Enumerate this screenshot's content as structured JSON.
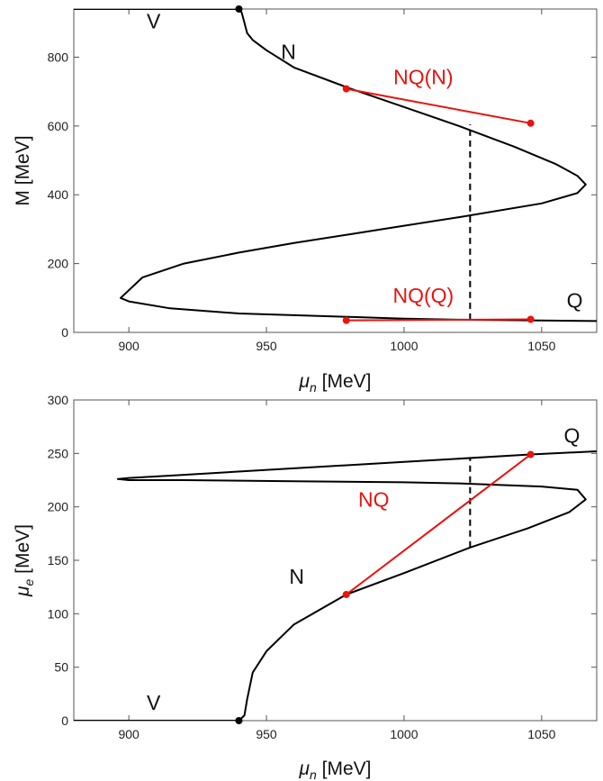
{
  "chart_data": [
    {
      "type": "line",
      "xlabel_sym": "μ",
      "xlabel_sub": "n",
      "xlabel_unit": "[MeV]",
      "ylabel": "M [MeV]",
      "xlim": [
        880,
        1070
      ],
      "ylim": [
        0,
        940
      ],
      "xticks": [
        900,
        950,
        1000,
        1050
      ],
      "yticks": [
        0,
        200,
        400,
        600,
        800
      ],
      "series": [
        {
          "color": "#000000",
          "x": [
            880,
            940,
            941,
            942,
            943,
            945,
            950,
            960,
            980,
            1000,
            1020,
            1040,
            1055,
            1063,
            1066,
            1063,
            1050,
            1020,
            1000,
            980,
            960,
            940,
            920,
            905,
            897,
            900,
            915,
            940,
            980,
            1000,
            1020,
            1045,
            1070
          ],
          "y": [
            940,
            940,
            930,
            900,
            870,
            850,
            820,
            770,
            710,
            655,
            600,
            540,
            490,
            455,
            430,
            405,
            375,
            335,
            310,
            285,
            260,
            232,
            200,
            160,
            100,
            90,
            70,
            55,
            45,
            40,
            37,
            35,
            33
          ]
        }
      ],
      "segments": [
        {
          "color": "#e8140f",
          "x": [
            979,
            1046
          ],
          "y": [
            708,
            608
          ]
        },
        {
          "color": "#e8140f",
          "x": [
            979,
            1046
          ],
          "y": [
            35,
            38
          ]
        }
      ],
      "markers": [
        {
          "color": "#000000",
          "x": 940,
          "y": 940
        },
        {
          "color": "#e8140f",
          "x": 979,
          "y": 708
        },
        {
          "color": "#e8140f",
          "x": 1046,
          "y": 608
        },
        {
          "color": "#e8140f",
          "x": 979,
          "y": 35
        },
        {
          "color": "#e8140f",
          "x": 1046,
          "y": 38
        }
      ],
      "dashed": {
        "x": 1024,
        "y": [
          37,
          605
        ]
      },
      "annotations": [
        {
          "text": "V",
          "x": 909,
          "y": 884,
          "color": "#000000"
        },
        {
          "text": "N",
          "x": 958,
          "y": 795,
          "color": "#000000"
        },
        {
          "text": "NQ(N)",
          "x": 1007,
          "y": 722,
          "color": "#e8140f"
        },
        {
          "text": "NQ(Q)",
          "x": 1007,
          "y": 87,
          "color": "#e8140f"
        },
        {
          "text": "Q",
          "x": 1062,
          "y": 72,
          "color": "#000000"
        }
      ]
    },
    {
      "type": "line",
      "xlabel_sym": "μ",
      "xlabel_sub": "n",
      "xlabel_unit": "[MeV]",
      "ylabel_sym": "μ",
      "ylabel_sub": "e",
      "ylabel_unit": "[MeV]",
      "xlim": [
        880,
        1070
      ],
      "ylim": [
        0,
        300
      ],
      "xticks": [
        900,
        950,
        1000,
        1050
      ],
      "yticks": [
        0,
        50,
        100,
        150,
        200,
        250,
        300
      ],
      "series": [
        {
          "color": "#000000",
          "x": [
            880,
            940,
            942,
            943,
            945,
            950,
            960,
            979,
            1000,
            1024,
            1045,
            1060,
            1066,
            1063,
            1050,
            1020,
            1000,
            960,
            920,
            900,
            896,
            900,
            920,
            960,
            1000,
            1046,
            1070
          ],
          "y": [
            0,
            0,
            5,
            20,
            45,
            65,
            90,
            118,
            138,
            162,
            180,
            195,
            207,
            216,
            219,
            222,
            223,
            224,
            225,
            225,
            226,
            227,
            230,
            236,
            242,
            249,
            252
          ]
        }
      ],
      "segments": [
        {
          "color": "#e8140f",
          "x": [
            979,
            1046
          ],
          "y": [
            118,
            249
          ]
        }
      ],
      "markers": [
        {
          "color": "#000000",
          "x": 940,
          "y": 0
        },
        {
          "color": "#e8140f",
          "x": 979,
          "y": 118
        },
        {
          "color": "#e8140f",
          "x": 1046,
          "y": 249
        }
      ],
      "dashed": {
        "x": 1024,
        "y": [
          162,
          246
        ]
      },
      "annotations": [
        {
          "text": "V",
          "x": 909,
          "y": 10,
          "color": "#000000"
        },
        {
          "text": "N",
          "x": 961,
          "y": 128,
          "color": "#000000"
        },
        {
          "text": "NQ",
          "x": 989,
          "y": 200,
          "color": "#e8140f"
        },
        {
          "text": "Q",
          "x": 1061,
          "y": 260,
          "color": "#000000"
        }
      ]
    }
  ]
}
